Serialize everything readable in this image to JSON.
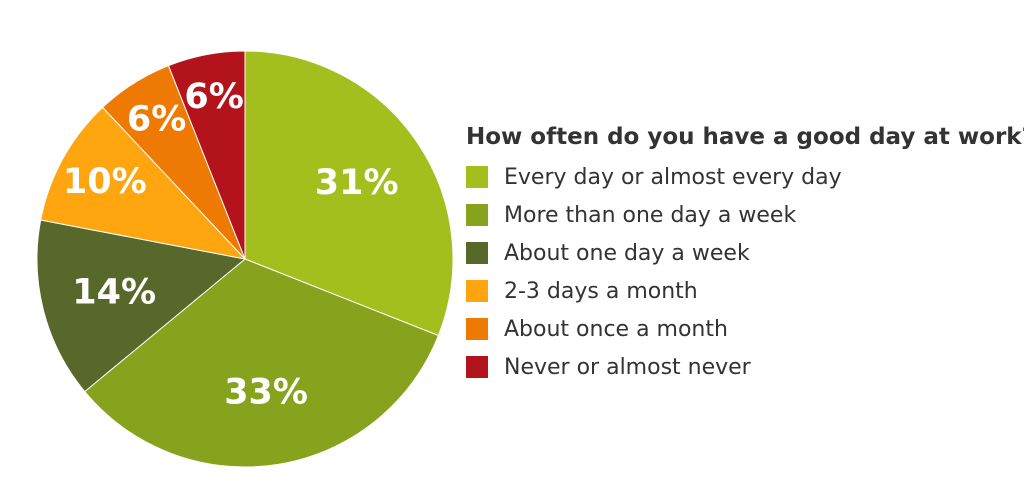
{
  "chart_data": {
    "type": "pie",
    "legend_title": "How often do you have a good day at work?",
    "legend_position": "right",
    "start_angle_deg": 0,
    "direction": "clockwise",
    "slices": [
      {
        "label": "Every day or almost every day",
        "value": 31,
        "display": "31%",
        "color": "#A2BF1E"
      },
      {
        "label": "More than one day a week",
        "value": 33,
        "display": "33%",
        "color": "#87A21C"
      },
      {
        "label": "About one day a week",
        "value": 14,
        "display": "14%",
        "color": "#58672A"
      },
      {
        "label": "2-3 days a month",
        "value": 10,
        "display": "10%",
        "color": "#FEA50F"
      },
      {
        "label": "About once a month",
        "value": 6,
        "display": "6%",
        "color": "#EE7A03"
      },
      {
        "label": "Never or almost never",
        "value": 6,
        "display": "6%",
        "color": "#B3131B"
      }
    ]
  }
}
